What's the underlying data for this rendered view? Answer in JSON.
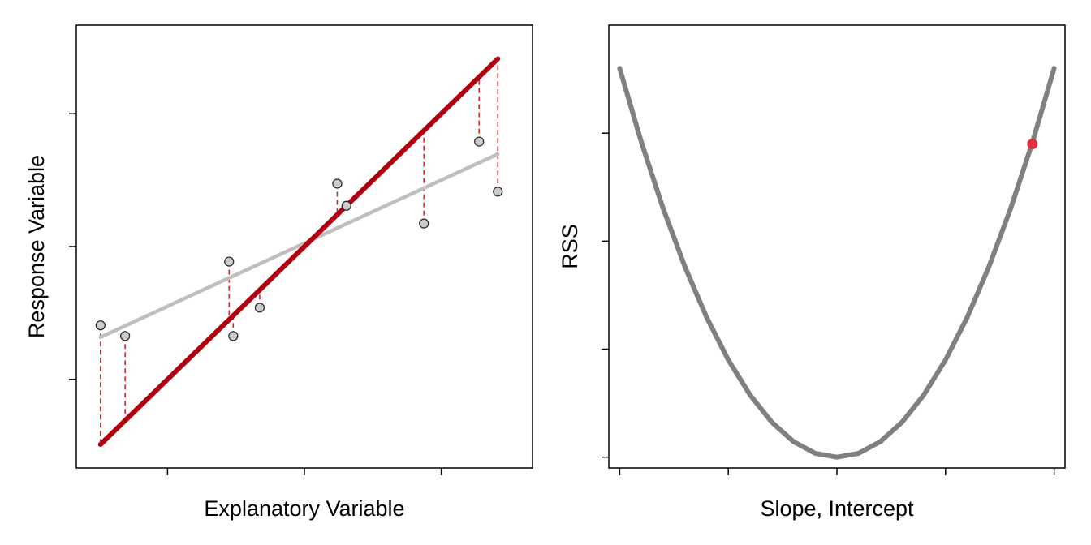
{
  "colors": {
    "frame": "#000000",
    "fit_line": "#b0000f",
    "ls_line": "#bfbfbf",
    "residual": "#d62728",
    "point_fill": "#cccccc",
    "point_stroke": "#222222",
    "rss_curve": "#808080",
    "current_marker": "#e03040"
  },
  "chart_data": [
    {
      "type": "scatter",
      "xlabel": "Explanatory Variable",
      "ylabel": "Response Variable",
      "xlim": [
        0,
        1
      ],
      "ylim": [
        0,
        1
      ],
      "xticks": [
        0.2,
        0.5,
        0.8
      ],
      "yticks": [
        0.2,
        0.5,
        0.8
      ],
      "points": [
        {
          "x": 0.053,
          "y": 0.322
        },
        {
          "x": 0.107,
          "y": 0.298
        },
        {
          "x": 0.335,
          "y": 0.466
        },
        {
          "x": 0.344,
          "y": 0.298
        },
        {
          "x": 0.402,
          "y": 0.362
        },
        {
          "x": 0.572,
          "y": 0.642
        },
        {
          "x": 0.592,
          "y": 0.592
        },
        {
          "x": 0.762,
          "y": 0.552
        },
        {
          "x": 0.883,
          "y": 0.737
        },
        {
          "x": 0.924,
          "y": 0.624
        }
      ],
      "fitted_line": {
        "intercept": 0.0,
        "slope": 1.0,
        "x": [
          0.053,
          0.924
        ]
      },
      "least_squares_line": {
        "intercept": 0.27,
        "slope": 0.475,
        "x": [
          0.053,
          0.924
        ]
      }
    },
    {
      "type": "line",
      "xlabel": "Slope, Intercept",
      "ylabel": "RSS",
      "xlim": [
        -2.1,
        2.1
      ],
      "ylim": [
        -0.1,
        4.0
      ],
      "xticks": [
        -2,
        -1,
        0,
        1,
        2
      ],
      "yticks": [
        0,
        1,
        2,
        3
      ],
      "curve": {
        "vertex": 0,
        "coefficient": 0.9,
        "x_range": [
          -2,
          2
        ]
      },
      "current": {
        "x": 1.8,
        "y": 2.9
      }
    }
  ]
}
